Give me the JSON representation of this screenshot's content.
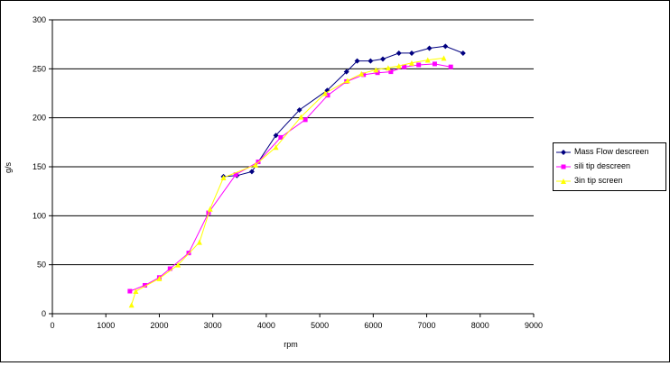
{
  "chart_data": {
    "type": "line",
    "title": "",
    "xlabel": "rpm",
    "ylabel": "g/s",
    "xlim": [
      0,
      9000
    ],
    "ylim": [
      0,
      300
    ],
    "x_ticks": [
      0,
      1000,
      2000,
      3000,
      4000,
      5000,
      6000,
      7000,
      8000,
      9000
    ],
    "y_ticks": [
      0,
      50,
      100,
      150,
      200,
      250,
      300
    ],
    "grid": "horizontal",
    "legend_position": "right",
    "series": [
      {
        "name": "Mass Flow descreen",
        "color": "#000080",
        "marker": "diamond",
        "points": [
          [
            3200,
            140
          ],
          [
            3450,
            141
          ],
          [
            3730,
            145
          ],
          [
            4180,
            182
          ],
          [
            4620,
            208
          ],
          [
            5140,
            228
          ],
          [
            5500,
            247
          ],
          [
            5700,
            258
          ],
          [
            5950,
            258
          ],
          [
            6180,
            260
          ],
          [
            6480,
            266
          ],
          [
            6720,
            266
          ],
          [
            7050,
            271
          ],
          [
            7350,
            273
          ],
          [
            7680,
            266
          ]
        ]
      },
      {
        "name": "sili tip descreen",
        "color": "#FF00FF",
        "marker": "square",
        "points": [
          [
            1450,
            23
          ],
          [
            1730,
            29
          ],
          [
            2000,
            37
          ],
          [
            2200,
            46
          ],
          [
            2550,
            62
          ],
          [
            2920,
            103
          ],
          [
            3430,
            142
          ],
          [
            3850,
            155
          ],
          [
            4270,
            180
          ],
          [
            4730,
            198
          ],
          [
            5150,
            223
          ],
          [
            5500,
            237
          ],
          [
            5820,
            244
          ],
          [
            6080,
            246
          ],
          [
            6330,
            247
          ],
          [
            6580,
            252
          ],
          [
            6850,
            254
          ],
          [
            7150,
            255
          ],
          [
            7450,
            252
          ]
        ]
      },
      {
        "name": "3in tip screen",
        "color": "#FFFF00",
        "marker": "triangle",
        "points": [
          [
            1480,
            9
          ],
          [
            1560,
            23
          ],
          [
            2000,
            36
          ],
          [
            2350,
            50
          ],
          [
            2750,
            73
          ],
          [
            2950,
            107
          ],
          [
            3200,
            139
          ],
          [
            3800,
            152
          ],
          [
            4180,
            170
          ],
          [
            4650,
            201
          ],
          [
            5100,
            225
          ],
          [
            5520,
            238
          ],
          [
            5780,
            245
          ],
          [
            6050,
            249
          ],
          [
            6280,
            251
          ],
          [
            6480,
            253
          ],
          [
            6720,
            256
          ],
          [
            7020,
            259
          ],
          [
            7320,
            261
          ]
        ]
      }
    ]
  }
}
